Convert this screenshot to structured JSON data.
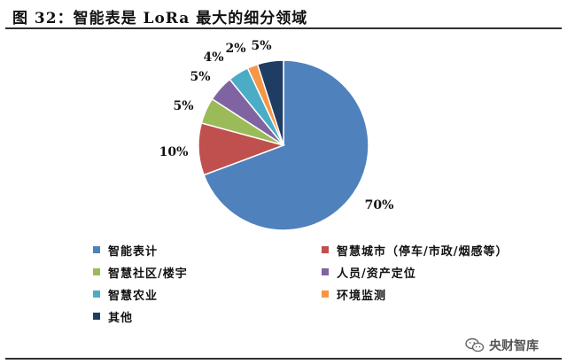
{
  "figure": {
    "title": "图 32：智能表是 LoRa 最大的细分领域"
  },
  "chart_data": {
    "type": "pie",
    "categories": [
      "智能表计",
      "智慧城市（停车/市政/烟感等）",
      "智慧社区/楼宇",
      "人员/资产定位",
      "智慧农业",
      "环境监测",
      "其他"
    ],
    "values": [
      70,
      10,
      5,
      5,
      4,
      2,
      5
    ],
    "data_labels": [
      "70%",
      "10%",
      "5%",
      "5%",
      "4%",
      "2%",
      "5%"
    ],
    "colors": [
      "#4f81bd",
      "#c0504d",
      "#9bbb59",
      "#8064a2",
      "#4bacc6",
      "#f79646",
      "#1f3d63"
    ],
    "legend_position": "bottom"
  },
  "watermark": {
    "icon": "wechat-icon",
    "text": "央财智库"
  }
}
